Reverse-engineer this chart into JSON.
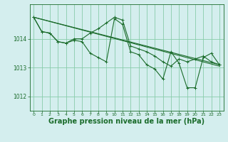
{
  "background_color": "#d4eeee",
  "grid_color": "#88ccaa",
  "line_color": "#1a6b2a",
  "xlabel": "Graphe pression niveau de la mer (hPa)",
  "xlabel_fontsize": 7,
  "ylabel_ticks": [
    1012,
    1013,
    1014
  ],
  "xlim": [
    -0.5,
    23.5
  ],
  "ylim": [
    1011.5,
    1015.2
  ],
  "xticks": [
    0,
    1,
    2,
    3,
    4,
    5,
    6,
    7,
    8,
    9,
    10,
    11,
    12,
    13,
    14,
    15,
    16,
    17,
    18,
    19,
    20,
    21,
    22,
    23
  ],
  "series1": {
    "x": [
      0,
      1,
      2,
      3,
      4,
      5,
      6,
      7,
      8,
      9,
      10,
      11,
      12,
      13,
      14,
      15,
      16,
      17,
      18,
      19,
      20,
      21,
      22,
      23
    ],
    "y": [
      1014.75,
      1014.25,
      1014.2,
      1013.9,
      1013.85,
      1014.0,
      1014.0,
      1014.2,
      1014.35,
      1014.55,
      1014.75,
      1014.65,
      1013.75,
      1013.65,
      1013.55,
      1013.4,
      1013.2,
      1013.05,
      1013.3,
      1013.2,
      1013.3,
      1013.4,
      1013.2,
      1013.1
    ]
  },
  "series2": {
    "x": [
      0,
      1,
      2,
      3,
      4,
      5,
      6,
      7,
      8,
      9,
      10,
      11,
      12,
      13,
      14,
      15,
      16,
      17,
      18,
      19,
      20,
      21,
      22,
      23
    ],
    "y": [
      1014.75,
      1014.25,
      1014.2,
      1013.9,
      1013.85,
      1013.95,
      1013.9,
      1013.5,
      1013.35,
      1013.2,
      1014.7,
      1014.5,
      1013.55,
      1013.45,
      1013.1,
      1012.95,
      1012.6,
      1013.55,
      1013.15,
      1012.3,
      1012.3,
      1013.35,
      1013.5,
      1013.1
    ]
  },
  "series3": {
    "x": [
      0,
      23
    ],
    "y": [
      1014.75,
      1013.1
    ]
  },
  "series4": {
    "x": [
      0,
      23
    ],
    "y": [
      1014.75,
      1013.05
    ]
  }
}
